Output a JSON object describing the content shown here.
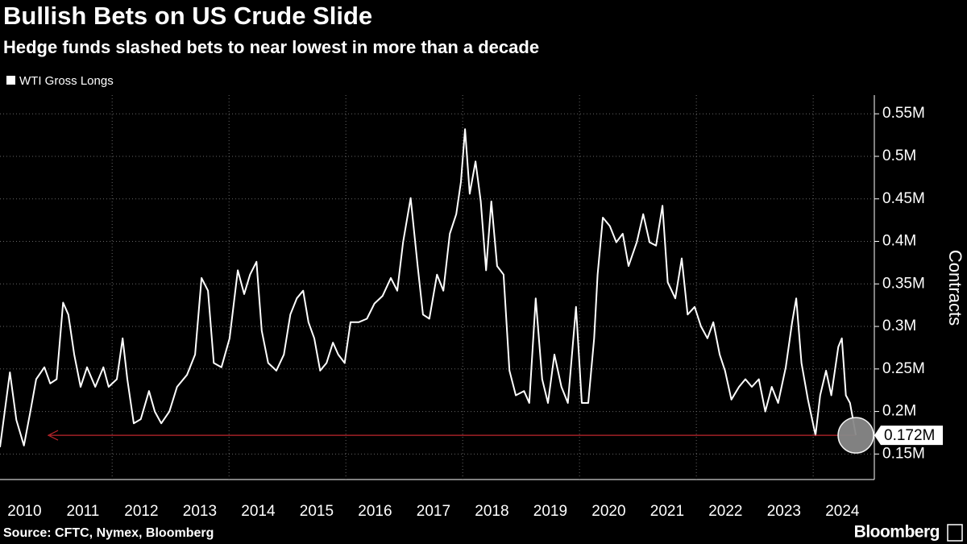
{
  "chart_data": {
    "type": "line",
    "title": "Bullish Bets on US Crude Slide",
    "subtitle": "Hedge funds slashed bets to near lowest in more than a decade",
    "y_label": "Contracts",
    "source": "Source: CFTC, Nymex, Bloomberg",
    "brand": "Bloomberg",
    "xlim": [
      2010.08,
      2024.95
    ],
    "xticks": [
      {
        "value": 2010.5,
        "label": "2010"
      },
      {
        "value": 2011.5,
        "label": "2011"
      },
      {
        "value": 2012.5,
        "label": "2012"
      },
      {
        "value": 2013.5,
        "label": "2013"
      },
      {
        "value": 2014.5,
        "label": "2014"
      },
      {
        "value": 2015.5,
        "label": "2015"
      },
      {
        "value": 2016.5,
        "label": "2016"
      },
      {
        "value": 2017.5,
        "label": "2017"
      },
      {
        "value": 2018.5,
        "label": "2018"
      },
      {
        "value": 2019.5,
        "label": "2019"
      },
      {
        "value": 2020.5,
        "label": "2020"
      },
      {
        "value": 2021.5,
        "label": "2021"
      },
      {
        "value": 2022.5,
        "label": "2022"
      },
      {
        "value": 2023.5,
        "label": "2023"
      },
      {
        "value": 2024.5,
        "label": "2024"
      }
    ],
    "xgrid": [
      2012,
      2014,
      2016,
      2018,
      2020,
      2022,
      2024
    ],
    "ylim": [
      0.12,
      0.572
    ],
    "yticks": [
      {
        "value": 0.15,
        "label": "0.15M"
      },
      {
        "value": 0.2,
        "label": "0.2M"
      },
      {
        "value": 0.25,
        "label": "0.25M"
      },
      {
        "value": 0.3,
        "label": "0.3M"
      },
      {
        "value": 0.35,
        "label": "0.35M"
      },
      {
        "value": 0.4,
        "label": "0.4M"
      },
      {
        "value": 0.45,
        "label": "0.45M"
      },
      {
        "value": 0.5,
        "label": "0.5M"
      },
      {
        "value": 0.55,
        "label": "0.55M"
      }
    ],
    "grid": true,
    "x": [
      2010.08,
      2010.25,
      2010.36,
      2010.49,
      2010.6,
      2010.7,
      2010.84,
      2010.94,
      2011.05,
      2011.16,
      2011.25,
      2011.35,
      2011.46,
      2011.57,
      2011.71,
      2011.85,
      2011.94,
      2012.08,
      2012.18,
      2012.26,
      2012.37,
      2012.49,
      2012.63,
      2012.73,
      2012.84,
      2012.98,
      2013.11,
      2013.28,
      2013.42,
      2013.53,
      2013.64,
      2013.74,
      2013.87,
      2014.01,
      2014.15,
      2014.26,
      2014.36,
      2014.47,
      2014.56,
      2014.67,
      2014.81,
      2014.94,
      2015.05,
      2015.16,
      2015.27,
      2015.36,
      2015.46,
      2015.56,
      2015.67,
      2015.78,
      2015.87,
      2015.98,
      2016.08,
      2016.22,
      2016.36,
      2016.49,
      2016.63,
      2016.77,
      2016.88,
      2016.98,
      2017.11,
      2017.23,
      2017.32,
      2017.43,
      2017.56,
      2017.67,
      2017.78,
      2017.89,
      2017.97,
      2018.04,
      2018.12,
      2018.22,
      2018.31,
      2018.4,
      2018.49,
      2018.59,
      2018.7,
      2018.8,
      2018.91,
      2019.05,
      2019.14,
      2019.25,
      2019.36,
      2019.46,
      2019.57,
      2019.69,
      2019.8,
      2019.94,
      2020.04,
      2020.15,
      2020.25,
      2020.31,
      2020.4,
      2020.52,
      2020.63,
      2020.74,
      2020.84,
      2020.98,
      2021.09,
      2021.2,
      2021.31,
      2021.42,
      2021.51,
      2021.64,
      2021.75,
      2021.85,
      2021.97,
      2022.08,
      2022.19,
      2022.29,
      2022.4,
      2022.49,
      2022.6,
      2022.73,
      2022.84,
      2022.95,
      2023.07,
      2023.18,
      2023.29,
      2023.4,
      2023.53,
      2023.64,
      2023.71,
      2023.8,
      2023.91,
      2024.04,
      2024.12,
      2024.22,
      2024.31,
      2024.43,
      2024.49,
      2024.56,
      2024.63,
      2024.73
    ],
    "series": [
      {
        "name": "WTI Gross Longs",
        "color": "#ffffff",
        "values": [
          0.158,
          0.246,
          0.19,
          0.16,
          0.2,
          0.238,
          0.252,
          0.233,
          0.238,
          0.328,
          0.314,
          0.267,
          0.229,
          0.252,
          0.229,
          0.252,
          0.229,
          0.238,
          0.286,
          0.238,
          0.186,
          0.191,
          0.224,
          0.2,
          0.186,
          0.2,
          0.229,
          0.243,
          0.267,
          0.357,
          0.342,
          0.257,
          0.252,
          0.286,
          0.366,
          0.338,
          0.361,
          0.376,
          0.295,
          0.257,
          0.248,
          0.267,
          0.314,
          0.333,
          0.342,
          0.305,
          0.286,
          0.248,
          0.257,
          0.281,
          0.267,
          0.257,
          0.305,
          0.305,
          0.309,
          0.327,
          0.336,
          0.357,
          0.342,
          0.399,
          0.451,
          0.371,
          0.314,
          0.309,
          0.361,
          0.342,
          0.409,
          0.432,
          0.47,
          0.532,
          0.456,
          0.494,
          0.447,
          0.366,
          0.447,
          0.371,
          0.361,
          0.248,
          0.219,
          0.224,
          0.21,
          0.333,
          0.238,
          0.21,
          0.267,
          0.229,
          0.21,
          0.323,
          0.21,
          0.21,
          0.286,
          0.361,
          0.428,
          0.418,
          0.399,
          0.409,
          0.371,
          0.399,
          0.432,
          0.399,
          0.395,
          0.442,
          0.352,
          0.333,
          0.38,
          0.314,
          0.323,
          0.3,
          0.286,
          0.305,
          0.267,
          0.248,
          0.214,
          0.229,
          0.238,
          0.229,
          0.238,
          0.2,
          0.229,
          0.21,
          0.252,
          0.305,
          0.333,
          0.257,
          0.214,
          0.172,
          0.219,
          0.248,
          0.219,
          0.276,
          0.286,
          0.219,
          0.21,
          0.172
        ]
      }
    ],
    "annotation": {
      "value": 0.172,
      "label": "0.172M",
      "color": "#c0262d"
    }
  }
}
